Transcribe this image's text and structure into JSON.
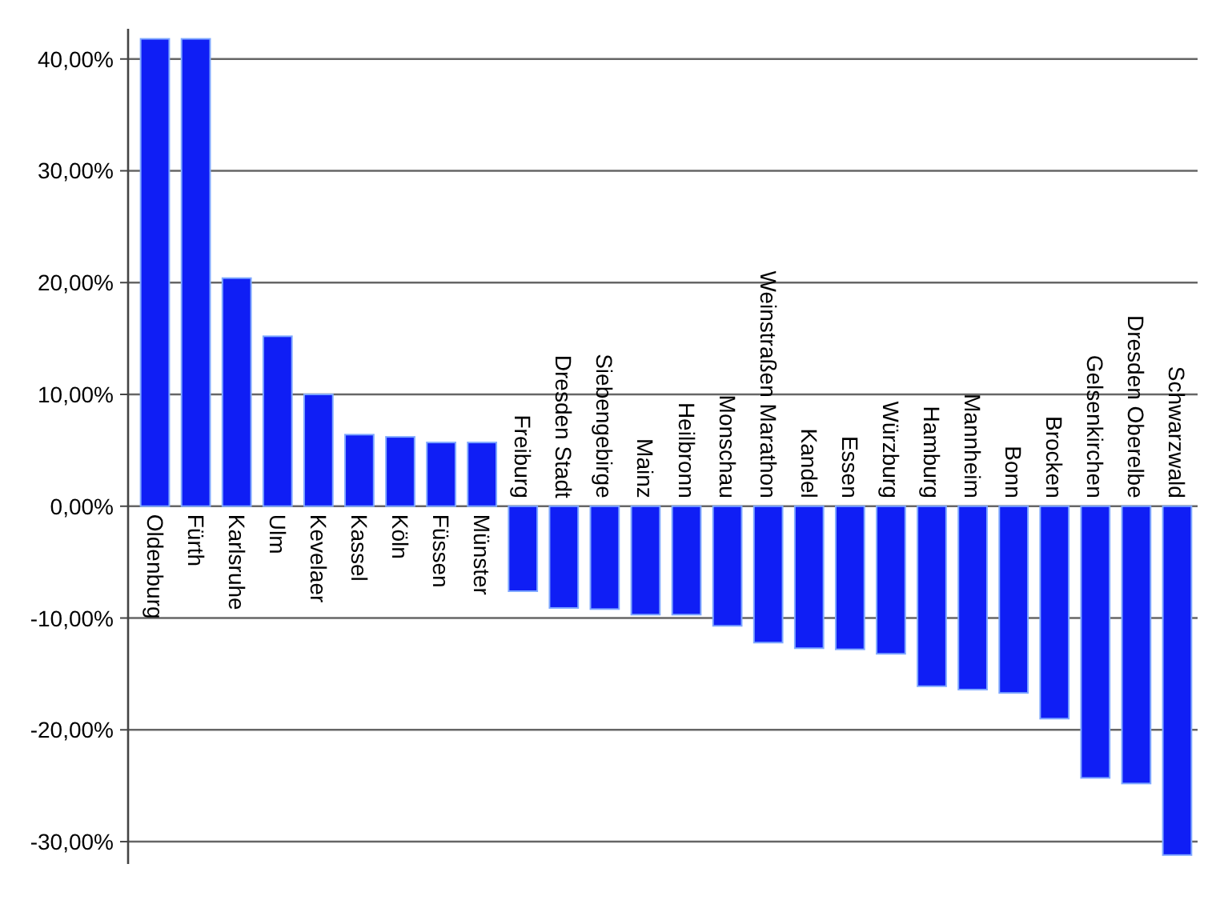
{
  "chart_data": {
    "type": "bar",
    "categories": [
      "Oldenburg",
      "Fürth",
      "Karlsruhe",
      "Ulm",
      "Kevelaer",
      "Kassel",
      "Köln",
      "Füssen",
      "Münster",
      "Freiburg",
      "Dresden Stadt",
      "Siebengebirge",
      "Mainz",
      "Heilbronn",
      "Monschau",
      "Weinstraßen Marathon",
      "Kandel",
      "Essen",
      "Würzburg",
      "Hamburg",
      "Mannheim",
      "Bonn",
      "Brocken",
      "Gelsenkirchen",
      "Dresden Oberelbe",
      "Schwarzwald"
    ],
    "values": [
      41.8,
      41.8,
      20.4,
      15.2,
      10.0,
      6.4,
      6.2,
      5.7,
      5.7,
      -7.6,
      -9.1,
      -9.2,
      -9.7,
      -9.7,
      -10.7,
      -12.2,
      -12.7,
      -12.8,
      -13.2,
      -16.1,
      -16.4,
      -16.7,
      -19.0,
      -24.3,
      -24.8,
      -31.2
    ],
    "color": "#0f1ef5",
    "ylim": [
      -32,
      42.7
    ],
    "yticks": [
      {
        "value": -30,
        "label": "-30,00%"
      },
      {
        "value": -20,
        "label": "-20,00%"
      },
      {
        "value": -10,
        "label": "-10,00%"
      },
      {
        "value": 0,
        "label": "0,00%"
      },
      {
        "value": 10,
        "label": "10,00%"
      },
      {
        "value": 20,
        "label": "20,00%"
      },
      {
        "value": 30,
        "label": "30,00%"
      },
      {
        "value": 40,
        "label": "40,00%"
      }
    ],
    "grid": "y"
  }
}
